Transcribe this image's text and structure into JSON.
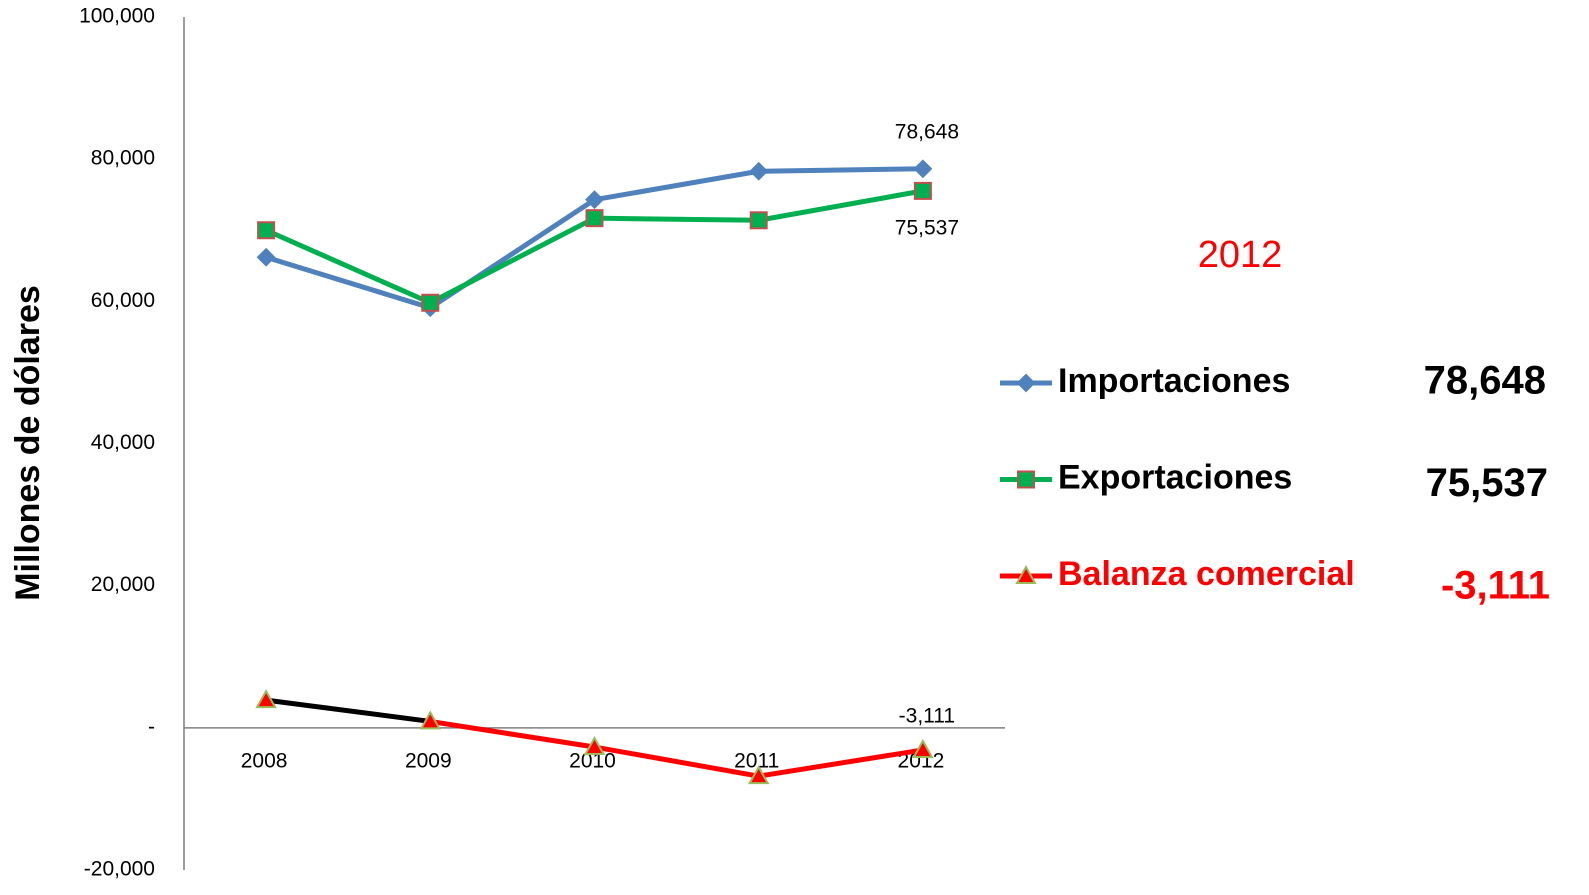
{
  "chart_data": {
    "type": "line",
    "y_label": "Millones de dólares",
    "categories": [
      "2008",
      "2009",
      "2010",
      "2011",
      "2012"
    ],
    "highlight_category_index": 4,
    "series": [
      {
        "name": "Importaciones",
        "color": "#4f81bd",
        "marker": "diamond",
        "marker_fill": "#4f81bd",
        "marker_stroke": "#4f81bd",
        "text_color": "#000000",
        "values": [
          66200,
          59100,
          74300,
          78300,
          78648
        ],
        "value_labels": [
          null,
          null,
          null,
          null,
          "78,648"
        ]
      },
      {
        "name": "Exportaciones",
        "color": "#00b050",
        "marker": "square",
        "marker_fill": "#00b050",
        "marker_stroke": "#c0504d",
        "text_color": "#000000",
        "values": [
          70000,
          59800,
          71700,
          71400,
          75537
        ],
        "value_labels": [
          null,
          null,
          null,
          null,
          "75,537"
        ]
      },
      {
        "name": "Balanza comercial",
        "color": "#ff0000",
        "segment_colors": [
          "#000000",
          "#ff0000",
          "#ff0000",
          "#ff0000"
        ],
        "marker": "triangle",
        "marker_fill": "#ff0000",
        "marker_stroke": "#9bbb59",
        "text_color": "#ff0000",
        "values": [
          3900,
          900,
          -2700,
          -6800,
          -3111
        ],
        "value_labels": [
          null,
          null,
          null,
          null,
          "-3,111"
        ]
      }
    ],
    "ylim": [
      -20000,
      100000
    ],
    "yticks": [
      {
        "value": -20000,
        "label": "-20,000"
      },
      {
        "value": 0,
        "label": "-"
      },
      {
        "value": 20000,
        "label": "20,000"
      },
      {
        "value": 40000,
        "label": "40,000"
      },
      {
        "value": 60000,
        "label": "60,000"
      },
      {
        "value": 80000,
        "label": "80,000"
      },
      {
        "value": 100000,
        "label": "100,000"
      }
    ],
    "grid": false
  }
}
